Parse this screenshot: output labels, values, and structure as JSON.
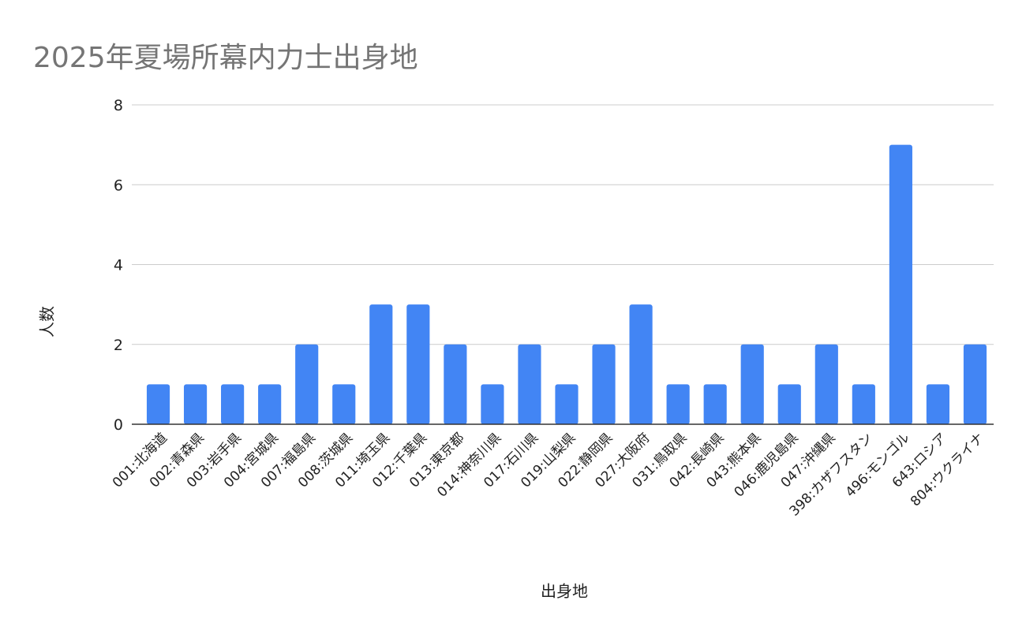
{
  "chart_data": {
    "type": "bar",
    "title": "2025年夏場所幕内力士出身地",
    "xlabel": "出身地",
    "ylabel": "人数",
    "categories": [
      "001:北海道",
      "002:青森県",
      "003:岩手県",
      "004:宮城県",
      "007:福島県",
      "008:茨城県",
      "011:埼玉県",
      "012:千葉県",
      "013:東京都",
      "014:神奈川県",
      "017:石川県",
      "019:山梨県",
      "022:静岡県",
      "027:大阪府",
      "031:鳥取県",
      "042:長崎県",
      "043:熊本県",
      "046:鹿児島県",
      "047:沖縄県",
      "398:カザフスタン",
      "496:モンゴル",
      "643:ロシア",
      "804:ウクライナ"
    ],
    "values": [
      1,
      1,
      1,
      1,
      2,
      1,
      3,
      3,
      2,
      1,
      2,
      1,
      2,
      3,
      1,
      1,
      2,
      1,
      2,
      1,
      7,
      1,
      2
    ],
    "ylim": [
      0,
      8
    ],
    "yticks": [
      0,
      2,
      4,
      6,
      8
    ],
    "grid": true,
    "legend": "none",
    "bar_color": "#4285f4"
  }
}
